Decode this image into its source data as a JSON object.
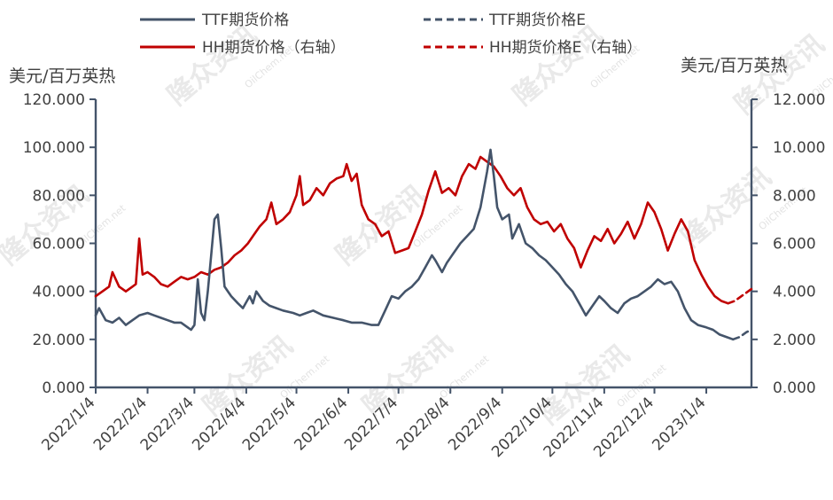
{
  "chart_data": {
    "type": "line",
    "title": "",
    "y_left_label": "美元/百万英热",
    "y_right_label": "美元/百万英热",
    "y_left_ticks": [
      "0.000",
      "20.000",
      "40.000",
      "60.000",
      "80.000",
      "100.000",
      "120.000"
    ],
    "y_right_ticks": [
      "0.000",
      "2.000",
      "4.000",
      "6.000",
      "8.000",
      "10.000",
      "12.000"
    ],
    "ylim_left": [
      0,
      120
    ],
    "ylim_right": [
      0,
      12
    ],
    "x_tick_labels": [
      "2022/1/4",
      "2022/2/4",
      "2022/3/4",
      "2022/4/4",
      "2022/5/4",
      "2022/6/4",
      "2022/7/4",
      "2022/8/4",
      "2022/9/4",
      "2022/10/4",
      "2022/11/4",
      "2022/12/4",
      "2023/1/4"
    ],
    "colors": {
      "ttf": "#44546a",
      "hh": "#c00000",
      "axis": "#44546a"
    },
    "legend_position": "top",
    "series": [
      {
        "name": "TTF期货价格",
        "axis": "left",
        "style": "solid",
        "values": [
          [
            "2022-01-04",
            30
          ],
          [
            "2022-01-06",
            33
          ],
          [
            "2022-01-10",
            28
          ],
          [
            "2022-01-14",
            27
          ],
          [
            "2022-01-18",
            29
          ],
          [
            "2022-01-22",
            26
          ],
          [
            "2022-01-26",
            28
          ],
          [
            "2022-01-30",
            30
          ],
          [
            "2022-02-04",
            31
          ],
          [
            "2022-02-08",
            30
          ],
          [
            "2022-02-12",
            29
          ],
          [
            "2022-02-16",
            28
          ],
          [
            "2022-02-20",
            27
          ],
          [
            "2022-02-24",
            27
          ],
          [
            "2022-02-28",
            25
          ],
          [
            "2022-03-02",
            24
          ],
          [
            "2022-03-04",
            26
          ],
          [
            "2022-03-06",
            45
          ],
          [
            "2022-03-08",
            31
          ],
          [
            "2022-03-10",
            28
          ],
          [
            "2022-03-12",
            40
          ],
          [
            "2022-03-14",
            55
          ],
          [
            "2022-03-16",
            70
          ],
          [
            "2022-03-18",
            72
          ],
          [
            "2022-03-20",
            58
          ],
          [
            "2022-03-22",
            42
          ],
          [
            "2022-03-26",
            38
          ],
          [
            "2022-03-30",
            35
          ],
          [
            "2022-04-02",
            33
          ],
          [
            "2022-04-06",
            38
          ],
          [
            "2022-04-08",
            35
          ],
          [
            "2022-04-10",
            40
          ],
          [
            "2022-04-14",
            36
          ],
          [
            "2022-04-18",
            34
          ],
          [
            "2022-04-22",
            33
          ],
          [
            "2022-04-26",
            32
          ],
          [
            "2022-05-02",
            31
          ],
          [
            "2022-05-06",
            30
          ],
          [
            "2022-05-10",
            31
          ],
          [
            "2022-05-14",
            32
          ],
          [
            "2022-05-20",
            30
          ],
          [
            "2022-05-26",
            29
          ],
          [
            "2022-06-01",
            28
          ],
          [
            "2022-06-06",
            27
          ],
          [
            "2022-06-12",
            27
          ],
          [
            "2022-06-18",
            26
          ],
          [
            "2022-06-22",
            26
          ],
          [
            "2022-06-26",
            32
          ],
          [
            "2022-06-30",
            38
          ],
          [
            "2022-07-04",
            37
          ],
          [
            "2022-07-08",
            40
          ],
          [
            "2022-07-12",
            42
          ],
          [
            "2022-07-16",
            45
          ],
          [
            "2022-07-20",
            50
          ],
          [
            "2022-07-24",
            55
          ],
          [
            "2022-07-26",
            53
          ],
          [
            "2022-07-30",
            48
          ],
          [
            "2022-08-02",
            52
          ],
          [
            "2022-08-06",
            56
          ],
          [
            "2022-08-10",
            60
          ],
          [
            "2022-08-14",
            63
          ],
          [
            "2022-08-18",
            66
          ],
          [
            "2022-08-22",
            75
          ],
          [
            "2022-08-26",
            90
          ],
          [
            "2022-08-28",
            99
          ],
          [
            "2022-08-30",
            88
          ],
          [
            "2022-09-01",
            75
          ],
          [
            "2022-09-04",
            70
          ],
          [
            "2022-09-08",
            72
          ],
          [
            "2022-09-10",
            62
          ],
          [
            "2022-09-14",
            68
          ],
          [
            "2022-09-18",
            60
          ],
          [
            "2022-09-22",
            58
          ],
          [
            "2022-09-26",
            55
          ],
          [
            "2022-09-30",
            53
          ],
          [
            "2022-10-04",
            50
          ],
          [
            "2022-10-08",
            47
          ],
          [
            "2022-10-12",
            43
          ],
          [
            "2022-10-16",
            40
          ],
          [
            "2022-10-20",
            35
          ],
          [
            "2022-10-24",
            30
          ],
          [
            "2022-10-28",
            34
          ],
          [
            "2022-11-01",
            38
          ],
          [
            "2022-11-04",
            36
          ],
          [
            "2022-11-08",
            33
          ],
          [
            "2022-11-12",
            31
          ],
          [
            "2022-11-16",
            35
          ],
          [
            "2022-11-20",
            37
          ],
          [
            "2022-11-24",
            38
          ],
          [
            "2022-11-28",
            40
          ],
          [
            "2022-12-02",
            42
          ],
          [
            "2022-12-06",
            45
          ],
          [
            "2022-12-10",
            43
          ],
          [
            "2022-12-14",
            44
          ],
          [
            "2022-12-18",
            40
          ],
          [
            "2022-12-22",
            33
          ],
          [
            "2022-12-26",
            28
          ],
          [
            "2022-12-30",
            26
          ],
          [
            "2023-01-04",
            25
          ],
          [
            "2023-01-08",
            24
          ],
          [
            "2023-01-12",
            22
          ],
          [
            "2023-01-16",
            21
          ],
          [
            "2023-01-20",
            20
          ]
        ]
      },
      {
        "name": "TTF期货价格E",
        "axis": "left",
        "style": "dashed",
        "values": [
          [
            "2023-01-20",
            20
          ],
          [
            "2023-01-24",
            21
          ],
          [
            "2023-01-28",
            23
          ],
          [
            "2023-01-31",
            24
          ]
        ]
      },
      {
        "name": "HH期货价格（右轴）",
        "axis": "right",
        "style": "solid",
        "values": [
          [
            "2022-01-04",
            3.8
          ],
          [
            "2022-01-08",
            4.0
          ],
          [
            "2022-01-12",
            4.2
          ],
          [
            "2022-01-14",
            4.8
          ],
          [
            "2022-01-18",
            4.2
          ],
          [
            "2022-01-22",
            4.0
          ],
          [
            "2022-01-26",
            4.2
          ],
          [
            "2022-01-28",
            4.3
          ],
          [
            "2022-01-30",
            6.2
          ],
          [
            "2022-02-01",
            4.7
          ],
          [
            "2022-02-04",
            4.8
          ],
          [
            "2022-02-08",
            4.6
          ],
          [
            "2022-02-12",
            4.3
          ],
          [
            "2022-02-16",
            4.2
          ],
          [
            "2022-02-20",
            4.4
          ],
          [
            "2022-02-24",
            4.6
          ],
          [
            "2022-02-28",
            4.5
          ],
          [
            "2022-03-04",
            4.6
          ],
          [
            "2022-03-08",
            4.8
          ],
          [
            "2022-03-12",
            4.7
          ],
          [
            "2022-03-16",
            4.9
          ],
          [
            "2022-03-20",
            5.0
          ],
          [
            "2022-03-24",
            5.2
          ],
          [
            "2022-03-28",
            5.5
          ],
          [
            "2022-04-01",
            5.7
          ],
          [
            "2022-04-05",
            6.0
          ],
          [
            "2022-04-08",
            6.3
          ],
          [
            "2022-04-12",
            6.7
          ],
          [
            "2022-04-16",
            7.0
          ],
          [
            "2022-04-19",
            7.7
          ],
          [
            "2022-04-22",
            6.8
          ],
          [
            "2022-04-26",
            7.0
          ],
          [
            "2022-04-30",
            7.3
          ],
          [
            "2022-05-04",
            8.0
          ],
          [
            "2022-05-06",
            8.8
          ],
          [
            "2022-05-08",
            7.6
          ],
          [
            "2022-05-12",
            7.8
          ],
          [
            "2022-05-16",
            8.3
          ],
          [
            "2022-05-20",
            8.0
          ],
          [
            "2022-05-24",
            8.5
          ],
          [
            "2022-05-28",
            8.7
          ],
          [
            "2022-06-01",
            8.8
          ],
          [
            "2022-06-03",
            9.3
          ],
          [
            "2022-06-06",
            8.6
          ],
          [
            "2022-06-09",
            8.9
          ],
          [
            "2022-06-12",
            7.6
          ],
          [
            "2022-06-16",
            7.0
          ],
          [
            "2022-06-20",
            6.8
          ],
          [
            "2022-06-24",
            6.3
          ],
          [
            "2022-06-28",
            6.5
          ],
          [
            "2022-07-02",
            5.6
          ],
          [
            "2022-07-06",
            5.7
          ],
          [
            "2022-07-10",
            5.8
          ],
          [
            "2022-07-14",
            6.5
          ],
          [
            "2022-07-18",
            7.2
          ],
          [
            "2022-07-22",
            8.2
          ],
          [
            "2022-07-26",
            9.0
          ],
          [
            "2022-07-30",
            8.1
          ],
          [
            "2022-08-03",
            8.3
          ],
          [
            "2022-08-07",
            8.0
          ],
          [
            "2022-08-11",
            8.8
          ],
          [
            "2022-08-15",
            9.3
          ],
          [
            "2022-08-19",
            9.1
          ],
          [
            "2022-08-22",
            9.6
          ],
          [
            "2022-08-26",
            9.4
          ],
          [
            "2022-08-30",
            9.2
          ],
          [
            "2022-09-03",
            8.8
          ],
          [
            "2022-09-07",
            8.3
          ],
          [
            "2022-09-11",
            8.0
          ],
          [
            "2022-09-15",
            8.3
          ],
          [
            "2022-09-19",
            7.5
          ],
          [
            "2022-09-23",
            7.0
          ],
          [
            "2022-09-27",
            6.8
          ],
          [
            "2022-10-01",
            6.9
          ],
          [
            "2022-10-05",
            6.5
          ],
          [
            "2022-10-09",
            6.8
          ],
          [
            "2022-10-13",
            6.2
          ],
          [
            "2022-10-17",
            5.8
          ],
          [
            "2022-10-21",
            5.0
          ],
          [
            "2022-10-25",
            5.7
          ],
          [
            "2022-10-29",
            6.3
          ],
          [
            "2022-11-02",
            6.1
          ],
          [
            "2022-11-06",
            6.6
          ],
          [
            "2022-11-10",
            6.0
          ],
          [
            "2022-11-14",
            6.4
          ],
          [
            "2022-11-18",
            6.9
          ],
          [
            "2022-11-22",
            6.2
          ],
          [
            "2022-11-26",
            6.8
          ],
          [
            "2022-11-30",
            7.7
          ],
          [
            "2022-12-04",
            7.3
          ],
          [
            "2022-12-08",
            6.6
          ],
          [
            "2022-12-12",
            5.7
          ],
          [
            "2022-12-16",
            6.4
          ],
          [
            "2022-12-20",
            7.0
          ],
          [
            "2022-12-24",
            6.5
          ],
          [
            "2022-12-28",
            5.3
          ],
          [
            "2023-01-01",
            4.7
          ],
          [
            "2023-01-05",
            4.2
          ],
          [
            "2023-01-09",
            3.8
          ],
          [
            "2023-01-13",
            3.6
          ],
          [
            "2023-01-17",
            3.5
          ]
        ]
      },
      {
        "name": "HH期货价格E（右轴）",
        "axis": "right",
        "style": "dashed",
        "values": [
          [
            "2023-01-17",
            3.5
          ],
          [
            "2023-01-21",
            3.6
          ],
          [
            "2023-01-25",
            3.8
          ],
          [
            "2023-01-29",
            4.0
          ],
          [
            "2023-01-31",
            4.1
          ]
        ]
      }
    ],
    "watermark": {
      "main": "隆众资讯",
      "sub": "OilChem.net"
    }
  }
}
